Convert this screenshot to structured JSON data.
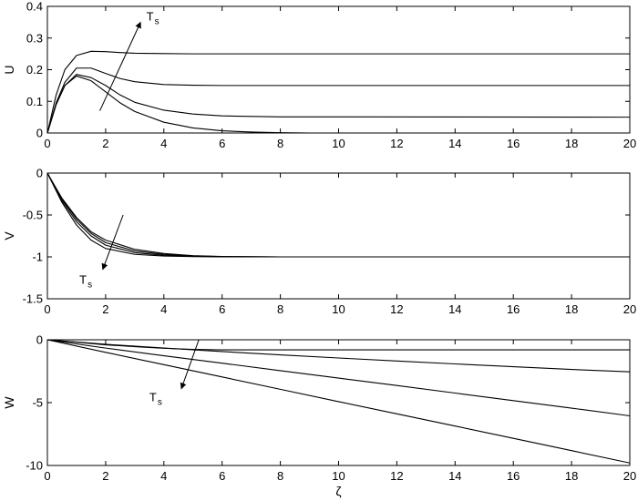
{
  "figure": {
    "background": "#ffffff",
    "line_color": "#000000"
  },
  "chart_data": [
    {
      "type": "line",
      "title": "",
      "xlabel": "",
      "ylabel": "U",
      "xlim": [
        0,
        20
      ],
      "ylim": [
        0,
        0.4
      ],
      "xticks": [
        "0",
        "2",
        "4",
        "6",
        "8",
        "10",
        "12",
        "14",
        "16",
        "18",
        "20"
      ],
      "yticks": [
        "0",
        "0.1",
        "0.2",
        "0.3",
        "0.4"
      ],
      "grid": false,
      "legend": "none",
      "series": [
        {
          "x": [
            0,
            0.3,
            0.6,
            1,
            1.5,
            2,
            2.5,
            3,
            4,
            5,
            6,
            7,
            8,
            9,
            10,
            20
          ],
          "values": [
            0,
            0.09,
            0.15,
            0.18,
            0.165,
            0.13,
            0.095,
            0.068,
            0.034,
            0.016,
            0.007,
            0.003,
            0.001,
            0,
            0,
            0
          ]
        },
        {
          "x": [
            0,
            0.3,
            0.6,
            1,
            1.5,
            2,
            2.5,
            3,
            4,
            5,
            6,
            8,
            20
          ],
          "values": [
            0,
            0.09,
            0.15,
            0.185,
            0.175,
            0.15,
            0.12,
            0.097,
            0.072,
            0.06,
            0.054,
            0.051,
            0.05
          ]
        },
        {
          "x": [
            0,
            0.3,
            0.6,
            1,
            1.5,
            2,
            2.5,
            3,
            4,
            5,
            6,
            20
          ],
          "values": [
            0,
            0.095,
            0.16,
            0.205,
            0.205,
            0.188,
            0.172,
            0.162,
            0.153,
            0.151,
            0.15,
            0.15
          ]
        },
        {
          "x": [
            0,
            0.3,
            0.6,
            1,
            1.5,
            2,
            2.5,
            3,
            4,
            5,
            20
          ],
          "values": [
            0,
            0.12,
            0.2,
            0.245,
            0.258,
            0.257,
            0.254,
            0.252,
            0.251,
            0.25,
            0.25
          ]
        }
      ],
      "annotation": {
        "text": "T",
        "subscript": "s",
        "arrow_from": [
          1.8,
          0.07
        ],
        "arrow_to": [
          3.2,
          0.35
        ],
        "label_at": [
          3.4,
          0.355
        ]
      }
    },
    {
      "type": "line",
      "title": "",
      "xlabel": "",
      "ylabel": "V",
      "xlim": [
        0,
        20
      ],
      "ylim": [
        -1.5,
        0
      ],
      "xticks": [
        "0",
        "2",
        "4",
        "6",
        "8",
        "10",
        "12",
        "14",
        "16",
        "18",
        "20"
      ],
      "yticks": [
        "0",
        "-0.5",
        "-1",
        "-1.5"
      ],
      "grid": false,
      "legend": "none",
      "series": [
        {
          "x": [
            0,
            0.5,
            1,
            1.5,
            2,
            3,
            4,
            5,
            6,
            8,
            20
          ],
          "values": [
            0,
            -0.3,
            -0.53,
            -0.7,
            -0.8,
            -0.91,
            -0.96,
            -0.985,
            -0.995,
            -1,
            -1
          ]
        },
        {
          "x": [
            0,
            0.5,
            1,
            1.5,
            2,
            3,
            4,
            5,
            6,
            8,
            20
          ],
          "values": [
            0,
            -0.31,
            -0.55,
            -0.72,
            -0.83,
            -0.93,
            -0.97,
            -0.99,
            -0.997,
            -1,
            -1
          ]
        },
        {
          "x": [
            0,
            0.5,
            1,
            1.5,
            2,
            3,
            4,
            5,
            6,
            8,
            20
          ],
          "values": [
            0,
            -0.33,
            -0.58,
            -0.75,
            -0.86,
            -0.95,
            -0.98,
            -0.993,
            -0.998,
            -1,
            -1
          ]
        },
        {
          "x": [
            0,
            0.5,
            1,
            1.5,
            2,
            3,
            4,
            5,
            6,
            8,
            20
          ],
          "values": [
            0,
            -0.35,
            -0.62,
            -0.8,
            -0.9,
            -0.97,
            -0.99,
            -0.997,
            -1,
            -1,
            -1
          ]
        }
      ],
      "annotation": {
        "text": "T",
        "subscript": "s",
        "arrow_from": [
          2.6,
          -0.5
        ],
        "arrow_to": [
          1.9,
          -1.15
        ],
        "label_at": [
          1.1,
          -1.32
        ]
      }
    },
    {
      "type": "line",
      "title": "",
      "xlabel": "ζ",
      "ylabel": "W",
      "xlim": [
        0,
        20
      ],
      "ylim": [
        -10,
        0
      ],
      "xticks": [
        "0",
        "2",
        "4",
        "6",
        "8",
        "10",
        "12",
        "14",
        "16",
        "18",
        "20"
      ],
      "yticks": [
        "0",
        "-5",
        "-10"
      ],
      "grid": false,
      "legend": "none",
      "series": [
        {
          "x": [
            0,
            1,
            2,
            3,
            4,
            5,
            6,
            20
          ],
          "values": [
            0,
            -0.2,
            -0.4,
            -0.55,
            -0.68,
            -0.76,
            -0.8,
            -0.8
          ]
        },
        {
          "x": [
            0,
            2,
            4,
            6,
            8,
            10,
            12,
            14,
            16,
            18,
            20
          ],
          "values": [
            0,
            -0.36,
            -0.66,
            -0.94,
            -1.2,
            -1.45,
            -1.69,
            -1.92,
            -2.14,
            -2.36,
            -2.55
          ]
        },
        {
          "x": [
            0,
            2,
            4,
            6,
            8,
            10,
            12,
            14,
            16,
            18,
            20
          ],
          "values": [
            0,
            -0.66,
            -1.27,
            -1.86,
            -2.46,
            -3.05,
            -3.64,
            -4.24,
            -4.84,
            -5.44,
            -6.05
          ]
        },
        {
          "x": [
            0,
            2,
            4,
            6,
            8,
            10,
            12,
            14,
            16,
            18,
            20
          ],
          "values": [
            0,
            -1.0,
            -1.98,
            -2.96,
            -3.94,
            -4.92,
            -5.89,
            -6.86,
            -7.84,
            -8.82,
            -9.8
          ]
        }
      ],
      "annotation": {
        "text": "T",
        "subscript": "s",
        "arrow_from": [
          5.2,
          0
        ],
        "arrow_to": [
          4.6,
          -3.9
        ],
        "label_at": [
          3.5,
          -4.9
        ]
      }
    }
  ]
}
